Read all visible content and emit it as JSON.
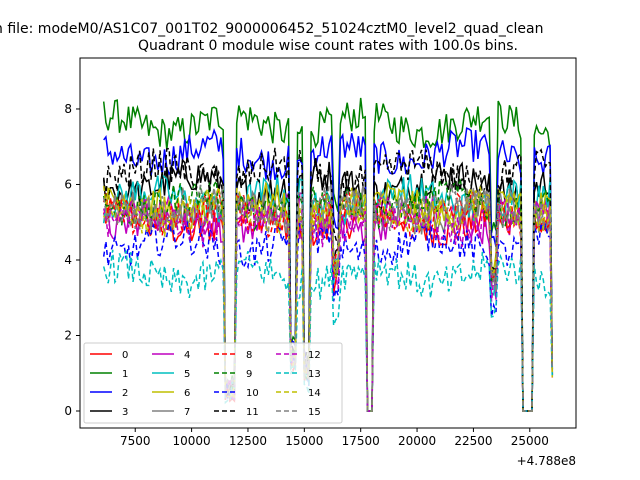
{
  "chart_data": {
    "type": "line",
    "suptitle": "n file: modeM0/AS1C07_001T02_9000006452_51024cztM0_level2_quad_clean",
    "title": "Quadrant 0 module wise count rates with 100.0s bins.",
    "xlabel": "",
    "ylabel": "",
    "x_offset_label": "+4.788e8",
    "xlim": [
      5050,
      27050
    ],
    "ylim": [
      -0.45,
      9.35
    ],
    "xticks": [
      7500,
      10000,
      12500,
      15000,
      17500,
      20000,
      22500,
      25000
    ],
    "xtick_labels": [
      "7500",
      "10000",
      "12500",
      "15000",
      "17500",
      "20000",
      "22500",
      "25000"
    ],
    "yticks": [
      0,
      2,
      4,
      6,
      8
    ],
    "ytick_labels": [
      "0",
      "2",
      "4",
      "6",
      "8"
    ],
    "legend_position": "lower-left",
    "legend_columns": 4,
    "series": [
      {
        "name": "0",
        "color": "#ff0000",
        "dash": "solid",
        "base": 5.0
      },
      {
        "name": "1",
        "color": "#008000",
        "dash": "solid",
        "base": 7.6
      },
      {
        "name": "2",
        "color": "#0000ff",
        "dash": "solid",
        "base": 6.8
      },
      {
        "name": "3",
        "color": "#000000",
        "dash": "solid",
        "base": 6.0
      },
      {
        "name": "4",
        "color": "#bf00bf",
        "dash": "solid",
        "base": 5.1
      },
      {
        "name": "5",
        "color": "#00bfbf",
        "dash": "solid",
        "base": 5.6
      },
      {
        "name": "6",
        "color": "#bfbf00",
        "dash": "solid",
        "base": 5.4
      },
      {
        "name": "7",
        "color": "#808080",
        "dash": "solid",
        "base": 5.3
      },
      {
        "name": "8",
        "color": "#ff0000",
        "dash": "dashed",
        "base": 5.2
      },
      {
        "name": "9",
        "color": "#008000",
        "dash": "dashed",
        "base": 5.5
      },
      {
        "name": "10",
        "color": "#0000ff",
        "dash": "dashed",
        "base": 4.4
      },
      {
        "name": "11",
        "color": "#000000",
        "dash": "dashed",
        "base": 6.3
      },
      {
        "name": "12",
        "color": "#bf00bf",
        "dash": "dashed",
        "base": 5.0
      },
      {
        "name": "13",
        "color": "#00bfbf",
        "dash": "dashed",
        "base": 3.6
      },
      {
        "name": "14",
        "color": "#bfbf00",
        "dash": "dashed",
        "base": 5.3
      },
      {
        "name": "15",
        "color": "#808080",
        "dash": "dashed",
        "base": 5.4
      }
    ],
    "x_range": [
      6100,
      26000
    ],
    "x_step": 100,
    "dips": [
      {
        "x": 11700,
        "width": 400,
        "depth": 0.95
      },
      {
        "x": 14500,
        "width": 300,
        "depth": 0.8
      },
      {
        "x": 15100,
        "width": 300,
        "depth": 0.85
      },
      {
        "x": 16400,
        "width": 250,
        "depth": 0.35
      },
      {
        "x": 23400,
        "width": 250,
        "depth": 0.4
      }
    ],
    "zero_gaps": [
      [
        17800,
        18000
      ],
      [
        24700,
        25100
      ]
    ],
    "end_value_last": 1.0
  }
}
